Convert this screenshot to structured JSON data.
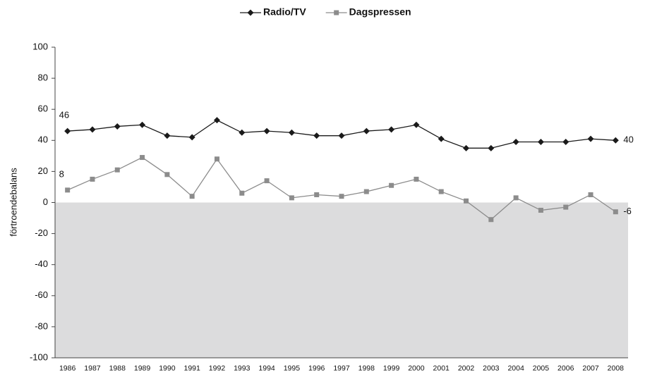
{
  "chart_data": {
    "type": "line",
    "y_label": "förtroendebalans",
    "categories": [
      "1986",
      "1987",
      "1988",
      "1989",
      "1990",
      "1991",
      "1992",
      "1993",
      "1994",
      "1995",
      "1996",
      "1997",
      "1998",
      "1999",
      "2000",
      "2001",
      "2002",
      "2003",
      "2004",
      "2005",
      "2006",
      "2007",
      "2008"
    ],
    "series": [
      {
        "name": "Radio/TV",
        "color": "#1a1a1a",
        "marker": "diamond",
        "values": [
          46,
          47,
          49,
          50,
          43,
          42,
          53,
          45,
          46,
          45,
          43,
          43,
          46,
          47,
          50,
          41,
          35,
          35,
          39,
          39,
          39,
          41,
          40
        ]
      },
      {
        "name": "Dagspressen",
        "color": "#8c8c8c",
        "marker": "square",
        "values": [
          8,
          15,
          21,
          29,
          18,
          4,
          28,
          6,
          14,
          3,
          5,
          4,
          7,
          11,
          15,
          7,
          1,
          -11,
          3,
          -5,
          -3,
          5,
          -6
        ]
      }
    ],
    "ylim": [
      -100,
      100
    ],
    "yticks": [
      -100,
      -80,
      -60,
      -40,
      -20,
      0,
      20,
      40,
      60,
      80,
      100
    ],
    "grid": false,
    "legend": "top"
  }
}
